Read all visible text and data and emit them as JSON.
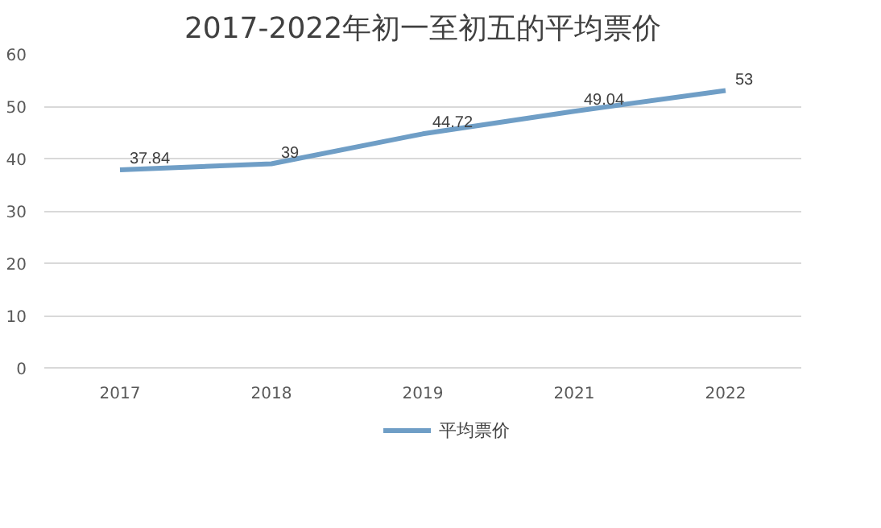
{
  "chart_data": {
    "type": "line",
    "title": "2017-2022年初一至初五的平均票价",
    "categories": [
      "2017",
      "2018",
      "2019",
      "2021",
      "2022"
    ],
    "series": [
      {
        "name": "平均票价",
        "color": "#6f9ec6",
        "values": [
          37.84,
          39,
          44.72,
          49.04,
          53
        ]
      }
    ],
    "ylim": [
      0,
      60
    ],
    "yticks": [
      0,
      10,
      20,
      30,
      40,
      50,
      60
    ],
    "grid": "y",
    "legend": "bottom",
    "data_labels": true,
    "marker": "none",
    "line_style": "solid"
  }
}
